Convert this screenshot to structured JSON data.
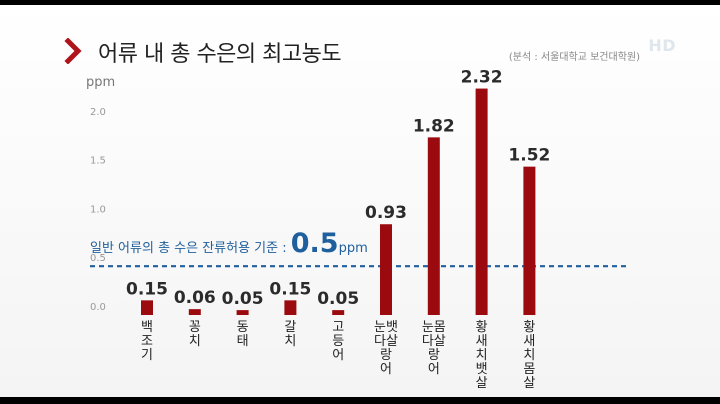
{
  "header": {
    "title": "어류 내 총 수은의 최고농도",
    "source": "(분석 : 서울대학교 보건대학원)",
    "channel_mark": "HD",
    "icon": "chevron-right-icon"
  },
  "colors": {
    "bar": "#9b0a0e",
    "reference": "#1f5f9d",
    "chevron": "#b0141b"
  },
  "chart_data": {
    "type": "bar",
    "title": "어류 내 총 수은의 최고농도",
    "ylabel": "ppm",
    "xlabel": "",
    "ylim": [
      0,
      2.5
    ],
    "yticks": [
      "0.0",
      "0.5",
      "1.0",
      "1.5",
      "2.0"
    ],
    "categories": [
      "백조기",
      "꽁치",
      "동태",
      "갈치",
      "고등어",
      "눈다랑어 뱃살",
      "눈다랑어 몸살",
      "황새치 뱃살",
      "황새치 몸살"
    ],
    "values": [
      0.15,
      0.06,
      0.05,
      0.15,
      0.05,
      0.93,
      1.82,
      2.32,
      1.52
    ],
    "value_labels": [
      "0.15",
      "0.06",
      "0.05",
      "0.15",
      "0.05",
      "0.93",
      "1.82",
      "2.32",
      "1.52"
    ],
    "category_lines": [
      [
        "백",
        "조",
        "기"
      ],
      [
        "꽁",
        "치"
      ],
      [
        "동",
        "태"
      ],
      [
        "갈",
        "치"
      ],
      [
        "고",
        "등",
        "어"
      ],
      [
        "눈뱃",
        "다살",
        "랑",
        "어"
      ],
      [
        "눈몸",
        "다살",
        "랑",
        "어"
      ],
      [
        "황",
        "새",
        "치",
        "뱃",
        "살"
      ],
      [
        "황",
        "새",
        "치",
        "몸",
        "살"
      ]
    ],
    "reference_line": {
      "value": 0.5,
      "label_prefix": "일반 어류의 총 수은 잔류허용 기준 :",
      "label_value": "0.5",
      "label_unit": "ppm",
      "style": "dashed"
    },
    "grid": false,
    "legend": "none"
  }
}
